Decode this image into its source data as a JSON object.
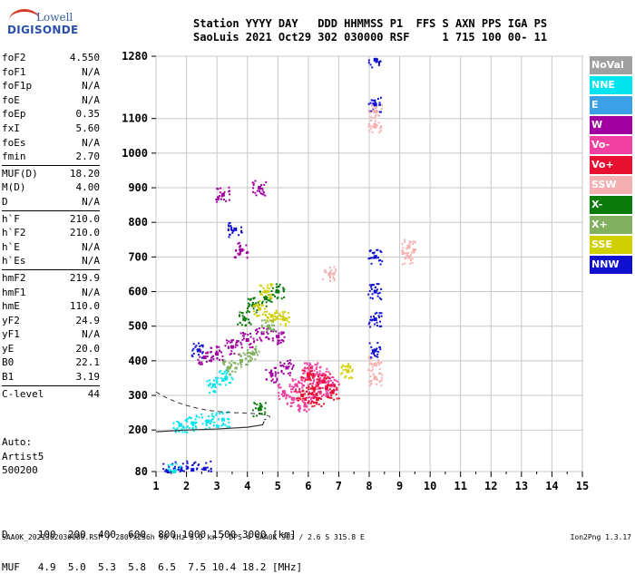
{
  "logo": {
    "line1": "Lowell",
    "line2": "DIGISONDE"
  },
  "header": {
    "line1": "Station YYYY DAY   DDD HHMMSS P1  FFS S AXN PPS IGA PS",
    "line2": "SaoLuis 2021 Oct29 302 030000 RSF     1 715 100 00- 11"
  },
  "params_group1": [
    {
      "k": "foF2",
      "v": "4.550"
    },
    {
      "k": "foF1",
      "v": "N/A"
    },
    {
      "k": "foF1p",
      "v": "N/A"
    },
    {
      "k": "foE",
      "v": "N/A"
    },
    {
      "k": "foEp",
      "v": "0.35"
    },
    {
      "k": "fxI",
      "v": "5.60"
    },
    {
      "k": "foEs",
      "v": "N/A"
    },
    {
      "k": "fmin",
      "v": "2.70"
    }
  ],
  "params_group2": [
    {
      "k": "MUF(D)",
      "v": "18.20"
    },
    {
      "k": "M(D)",
      "v": "4.00"
    },
    {
      "k": "D",
      "v": "N/A"
    }
  ],
  "params_group3": [
    {
      "k": "h`F",
      "v": "210.0"
    },
    {
      "k": "h`F2",
      "v": "210.0"
    },
    {
      "k": "h`E",
      "v": "N/A"
    },
    {
      "k": "h`Es",
      "v": "N/A"
    }
  ],
  "params_group4": [
    {
      "k": "hmF2",
      "v": "219.9"
    },
    {
      "k": "hmF1",
      "v": "N/A"
    },
    {
      "k": "hmE",
      "v": "110.0"
    },
    {
      "k": "yF2",
      "v": "24.9"
    },
    {
      "k": "yF1",
      "v": "N/A"
    },
    {
      "k": "yE",
      "v": "20.0"
    },
    {
      "k": "B0",
      "v": "22.1"
    },
    {
      "k": "B1",
      "v": "3.19"
    }
  ],
  "params_group5": [
    {
      "k": "C-level",
      "v": "44"
    }
  ],
  "auto": {
    "line1": "Auto:",
    "line2": "Artist5",
    "line3": "500200"
  },
  "legend": [
    {
      "label": "NoVal",
      "color": "#a0a0a0"
    },
    {
      "label": "NNE",
      "color": "#00e5f0"
    },
    {
      "label": "E",
      "color": "#3aa0e8"
    },
    {
      "label": "W",
      "color": "#a000a0"
    },
    {
      "label": "Vo-",
      "color": "#f040a0"
    },
    {
      "label": "Vo+",
      "color": "#e81030"
    },
    {
      "label": "SSW",
      "color": "#f4b0b0"
    },
    {
      "label": "X-",
      "color": "#0a7a0a"
    },
    {
      "label": "X+",
      "color": "#80b060"
    },
    {
      "label": "SSE",
      "color": "#d0d000"
    },
    {
      "label": "NNW",
      "color": "#1010d0"
    }
  ],
  "muf_table": {
    "line1": "D     100  200  400  600  800 1000 1500 3000 [km]",
    "line2": "MUF   4.9  5.0  5.3  5.8  6.5  7.5 10.4 18.2 [MHz]"
  },
  "footer": {
    "left": "SAA0K_2021302030000.RSF / 280fx256h 50 kHz 5.0 km / DPS-4 SAA0K 903 / 2.6 S 315.8 E",
    "right": "Ion2Png 1.3.17"
  },
  "chart_data": {
    "type": "scatter",
    "x_ticks": [
      1,
      2,
      3,
      4,
      5,
      6,
      7,
      8,
      9,
      10,
      11,
      12,
      13,
      14,
      15
    ],
    "y_ticks": [
      80,
      200,
      300,
      400,
      500,
      600,
      700,
      800,
      900,
      1000,
      1100,
      1280
    ],
    "xlim": [
      1,
      15
    ],
    "ylim": [
      80,
      1280
    ],
    "grid": true,
    "legend_position": "right",
    "series": [
      {
        "name": "Vo-",
        "color": "#f040a0",
        "points": [
          [
            5.2,
            310
          ],
          [
            5.6,
            330
          ],
          [
            6.0,
            350
          ],
          [
            6.4,
            340
          ],
          [
            6.8,
            330
          ],
          [
            5.5,
            290
          ],
          [
            6.2,
            300
          ],
          [
            6.6,
            320
          ],
          [
            5.9,
            270
          ],
          [
            6.1,
            380
          ],
          [
            6.5,
            360
          ]
        ]
      },
      {
        "name": "Vo+",
        "color": "#e81030",
        "points": [
          [
            5.8,
            300
          ],
          [
            6.2,
            320
          ],
          [
            6.5,
            340
          ],
          [
            6.8,
            310
          ],
          [
            6.0,
            360
          ],
          [
            6.3,
            290
          ]
        ]
      },
      {
        "name": "W",
        "color": "#a000a0",
        "points": [
          [
            3.0,
            420
          ],
          [
            3.5,
            440
          ],
          [
            4.0,
            460
          ],
          [
            4.5,
            480
          ],
          [
            5.0,
            470
          ],
          [
            2.6,
            410
          ],
          [
            4.8,
            360
          ],
          [
            5.3,
            380
          ],
          [
            3.2,
            880
          ],
          [
            4.4,
            900
          ],
          [
            3.8,
            720
          ]
        ]
      },
      {
        "name": "NNW",
        "color": "#1010d0",
        "points": [
          [
            1.4,
            80
          ],
          [
            1.8,
            90
          ],
          [
            2.2,
            85
          ],
          [
            2.6,
            88
          ],
          [
            8.2,
            1270
          ],
          [
            8.2,
            1140
          ],
          [
            8.2,
            700
          ],
          [
            8.2,
            600
          ],
          [
            8.2,
            520
          ],
          [
            8.2,
            430
          ],
          [
            2.4,
            430
          ],
          [
            3.6,
            780
          ]
        ]
      },
      {
        "name": "NNE",
        "color": "#00e5f0",
        "points": [
          [
            1.8,
            215
          ],
          [
            2.2,
            220
          ],
          [
            2.7,
            225
          ],
          [
            3.2,
            230
          ],
          [
            2.9,
            330
          ],
          [
            3.3,
            350
          ],
          [
            1.6,
            80
          ]
        ]
      },
      {
        "name": "X-",
        "color": "#0a7a0a",
        "points": [
          [
            4.2,
            560
          ],
          [
            4.6,
            580
          ],
          [
            5.0,
            600
          ],
          [
            3.9,
            520
          ],
          [
            4.4,
            260
          ]
        ]
      },
      {
        "name": "X+",
        "color": "#80b060",
        "points": [
          [
            3.4,
            380
          ],
          [
            3.8,
            400
          ],
          [
            4.2,
            420
          ],
          [
            4.7,
            500
          ]
        ]
      },
      {
        "name": "SSE",
        "color": "#d0d000",
        "points": [
          [
            4.4,
            550
          ],
          [
            4.8,
            530
          ],
          [
            5.2,
            520
          ],
          [
            4.6,
            600
          ],
          [
            7.3,
            370
          ]
        ]
      },
      {
        "name": "SSW",
        "color": "#f4b0b0",
        "points": [
          [
            8.2,
            1120
          ],
          [
            8.2,
            1080
          ],
          [
            8.2,
            390
          ],
          [
            8.2,
            350
          ],
          [
            9.3,
            730
          ],
          [
            9.3,
            700
          ],
          [
            6.7,
            650
          ]
        ]
      }
    ],
    "profile_line": [
      [
        1,
        195
      ],
      [
        2,
        200
      ],
      [
        3,
        203
      ],
      [
        4,
        208
      ],
      [
        4.5,
        215
      ],
      [
        4.55,
        225
      ]
    ]
  }
}
